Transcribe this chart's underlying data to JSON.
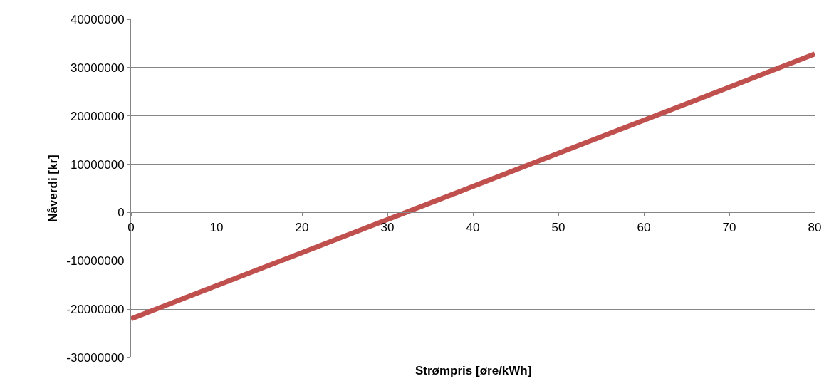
{
  "chart_data": {
    "type": "line",
    "xlabel": "Strømpris [øre/kWh]",
    "ylabel": "Nåverdi [kr]",
    "x": [
      0,
      80
    ],
    "series": [
      {
        "color": "#c0504d",
        "values": [
          -22000000,
          32800000
        ]
      }
    ],
    "xlim": [
      0,
      80
    ],
    "xticks": [
      0,
      10,
      20,
      30,
      40,
      50,
      60,
      70,
      80
    ],
    "ylim": [
      -30000000,
      40000000
    ],
    "yticks": [
      -30000000,
      -20000000,
      -10000000,
      0,
      10000000,
      20000000,
      30000000,
      40000000
    ],
    "grid": "y",
    "marker": "none",
    "line_style": "solid"
  }
}
